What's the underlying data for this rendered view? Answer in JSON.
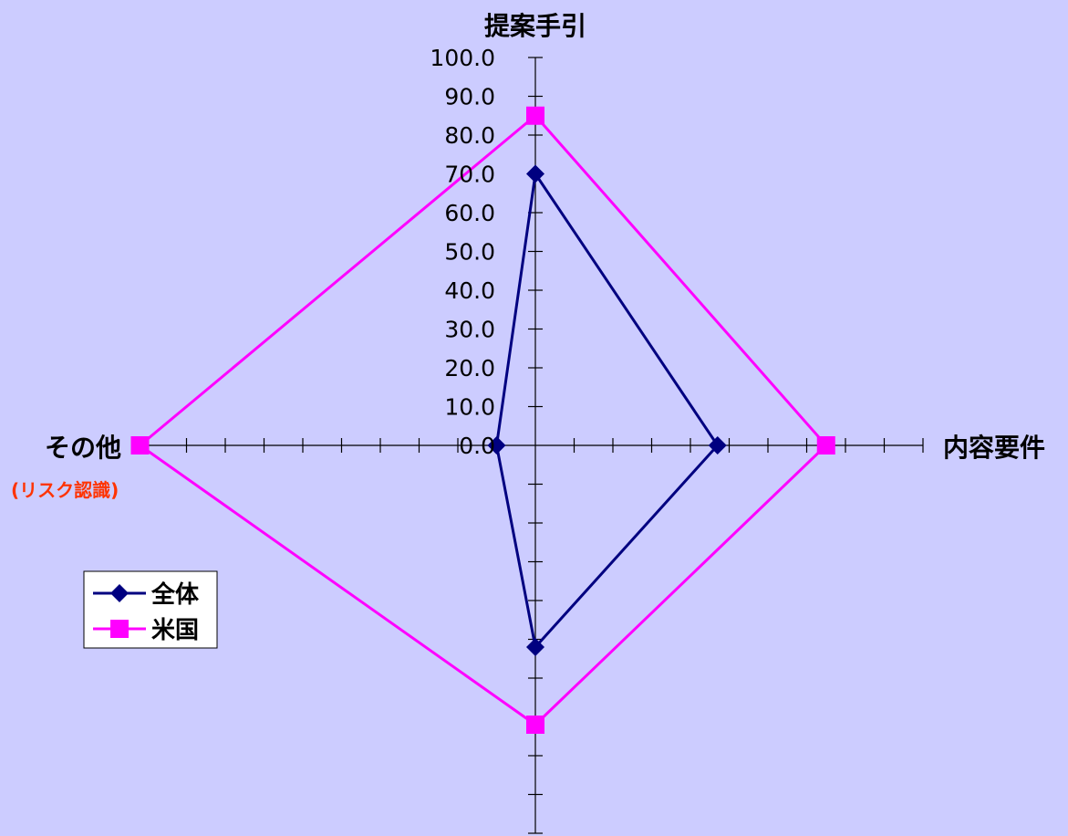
{
  "chart_data": {
    "type": "radar",
    "axes": [
      "提案手引",
      "内容要件",
      "",
      "その他"
    ],
    "axis_sublabels": {
      "その他": "(リスク認識)"
    },
    "series": [
      {
        "name": "全体",
        "values": [
          70.0,
          47.0,
          52.0,
          10.0
        ],
        "color": "#000080",
        "marker": "diamond"
      },
      {
        "name": "米国",
        "values": [
          85.0,
          75.0,
          72.0,
          102.0
        ],
        "color": "#ff00ff",
        "marker": "square"
      }
    ],
    "rlim": [
      0,
      100
    ],
    "tick_values": [
      0,
      10,
      20,
      30,
      40,
      50,
      60,
      70,
      80,
      90,
      100
    ],
    "tick_labels": [
      "0.0",
      "10.0",
      "20.0",
      "30.0",
      "40.0",
      "50.0",
      "60.0",
      "70.0",
      "80.0",
      "90.0",
      "100.0"
    ],
    "legend_position": "left",
    "sublabel_color": "#ff3300",
    "background_color": "#ccccff"
  }
}
